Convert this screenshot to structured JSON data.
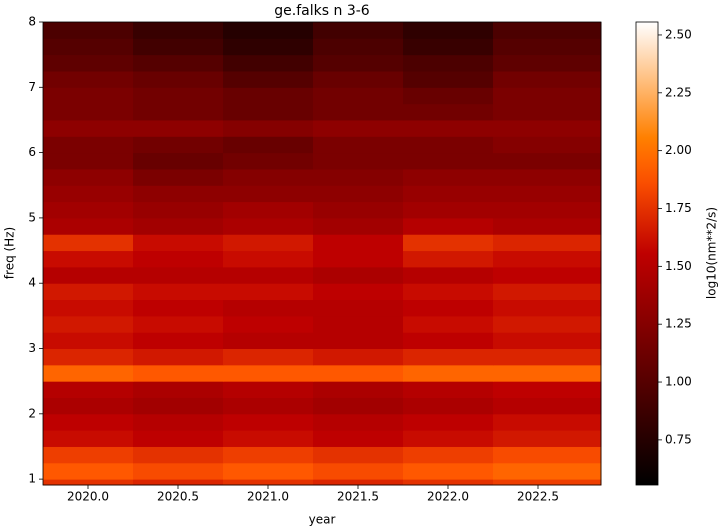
{
  "chart_data": {
    "type": "heatmap",
    "title": "ge.falks n 3-6",
    "xlabel": "year",
    "ylabel": "freq (Hz)",
    "colormap": "gist_heat",
    "x_bins": [
      2019.75,
      2020.25,
      2020.75,
      2021.25,
      2021.75,
      2022.25,
      2022.85
    ],
    "y_bins": [
      0.91,
      1.0,
      1.25,
      1.5,
      1.75,
      2.0,
      2.25,
      2.5,
      2.75,
      3.0,
      3.25,
      3.5,
      3.75,
      4.0,
      4.25,
      4.5,
      4.75,
      5.0,
      5.25,
      5.5,
      5.75,
      6.0,
      6.25,
      6.5,
      6.75,
      7.0,
      7.25,
      7.5,
      7.75,
      8.0
    ],
    "z": [
      [
        1.75,
        1.7,
        1.75,
        1.7,
        1.75,
        1.8
      ],
      [
        1.9,
        1.85,
        1.9,
        1.85,
        1.9,
        1.95
      ],
      [
        1.8,
        1.75,
        1.8,
        1.75,
        1.8,
        1.85
      ],
      [
        1.6,
        1.55,
        1.6,
        1.55,
        1.6,
        1.65
      ],
      [
        1.55,
        1.5,
        1.55,
        1.5,
        1.55,
        1.6
      ],
      [
        1.45,
        1.4,
        1.45,
        1.4,
        1.45,
        1.5
      ],
      [
        1.5,
        1.45,
        1.5,
        1.45,
        1.5,
        1.55
      ],
      [
        1.95,
        1.9,
        1.9,
        1.9,
        1.95,
        1.95
      ],
      [
        1.7,
        1.65,
        1.7,
        1.65,
        1.7,
        1.7
      ],
      [
        1.6,
        1.55,
        1.5,
        1.5,
        1.55,
        1.6
      ],
      [
        1.65,
        1.6,
        1.55,
        1.5,
        1.6,
        1.65
      ],
      [
        1.6,
        1.55,
        1.5,
        1.5,
        1.55,
        1.6
      ],
      [
        1.65,
        1.6,
        1.6,
        1.55,
        1.6,
        1.65
      ],
      [
        1.5,
        1.5,
        1.5,
        1.45,
        1.5,
        1.55
      ],
      [
        1.6,
        1.55,
        1.6,
        1.55,
        1.65,
        1.6
      ],
      [
        1.75,
        1.6,
        1.65,
        1.55,
        1.75,
        1.7
      ],
      [
        1.45,
        1.4,
        1.45,
        1.4,
        1.5,
        1.45
      ],
      [
        1.4,
        1.35,
        1.4,
        1.35,
        1.4,
        1.4
      ],
      [
        1.35,
        1.3,
        1.3,
        1.3,
        1.35,
        1.35
      ],
      [
        1.3,
        1.2,
        1.25,
        1.25,
        1.3,
        1.3
      ],
      [
        1.2,
        1.1,
        1.15,
        1.2,
        1.2,
        1.2
      ],
      [
        1.2,
        1.15,
        1.1,
        1.2,
        1.2,
        1.25
      ],
      [
        1.3,
        1.3,
        1.25,
        1.3,
        1.3,
        1.3
      ],
      [
        1.2,
        1.15,
        1.1,
        1.15,
        1.15,
        1.2
      ],
      [
        1.2,
        1.15,
        1.1,
        1.15,
        1.1,
        1.2
      ],
      [
        1.15,
        1.1,
        1.0,
        1.1,
        1.0,
        1.15
      ],
      [
        1.05,
        1.0,
        0.9,
        1.0,
        0.95,
        1.05
      ],
      [
        1.0,
        0.9,
        0.8,
        0.95,
        0.85,
        1.0
      ],
      [
        0.95,
        0.85,
        0.75,
        0.9,
        0.8,
        0.95
      ]
    ],
    "xlim": [
      2019.75,
      2022.85
    ],
    "xticks": [
      {
        "value": 2020,
        "label": "2020.0"
      },
      2020.5,
      {
        "value": 2021,
        "label": "2021.0"
      },
      2021.5,
      {
        "value": 2022,
        "label": "2022.0"
      },
      2022.5
    ],
    "ylim": [
      0.91,
      8
    ],
    "yticks": [
      1,
      2,
      3,
      4,
      5,
      6,
      7,
      8
    ],
    "colorbar": {
      "label": "log10(nm**2/s)",
      "lim": [
        0.555,
        2.556
      ],
      "ticks": [
        0.75,
        {
          "value": 1,
          "label": "1.00"
        },
        1.25,
        {
          "value": 1.5,
          "label": "1.50"
        },
        1.75,
        {
          "value": 2,
          "label": "2.00"
        },
        2.25,
        {
          "value": 2.5,
          "label": "2.50"
        }
      ]
    }
  }
}
